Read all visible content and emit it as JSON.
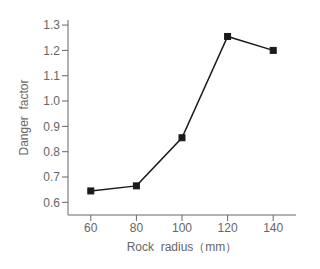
{
  "chart_data": {
    "type": "line",
    "x": [
      60,
      80,
      100,
      120,
      140
    ],
    "values": [
      0.645,
      0.665,
      0.855,
      1.255,
      1.2
    ],
    "color": "#1a1a1a",
    "marker": "square",
    "xlabel": "Rock  radius（mm）",
    "ylabel": "Danger  factor",
    "xlim": [
      50,
      150
    ],
    "ylim": [
      0.55,
      1.32
    ],
    "xticks": [
      60,
      80,
      100,
      120,
      140
    ],
    "yticks": [
      0.6,
      0.7,
      0.8,
      0.9,
      {
        "value": 1.0,
        "label": "1.0"
      },
      1.1,
      1.2,
      1.3
    ],
    "grid": false
  }
}
